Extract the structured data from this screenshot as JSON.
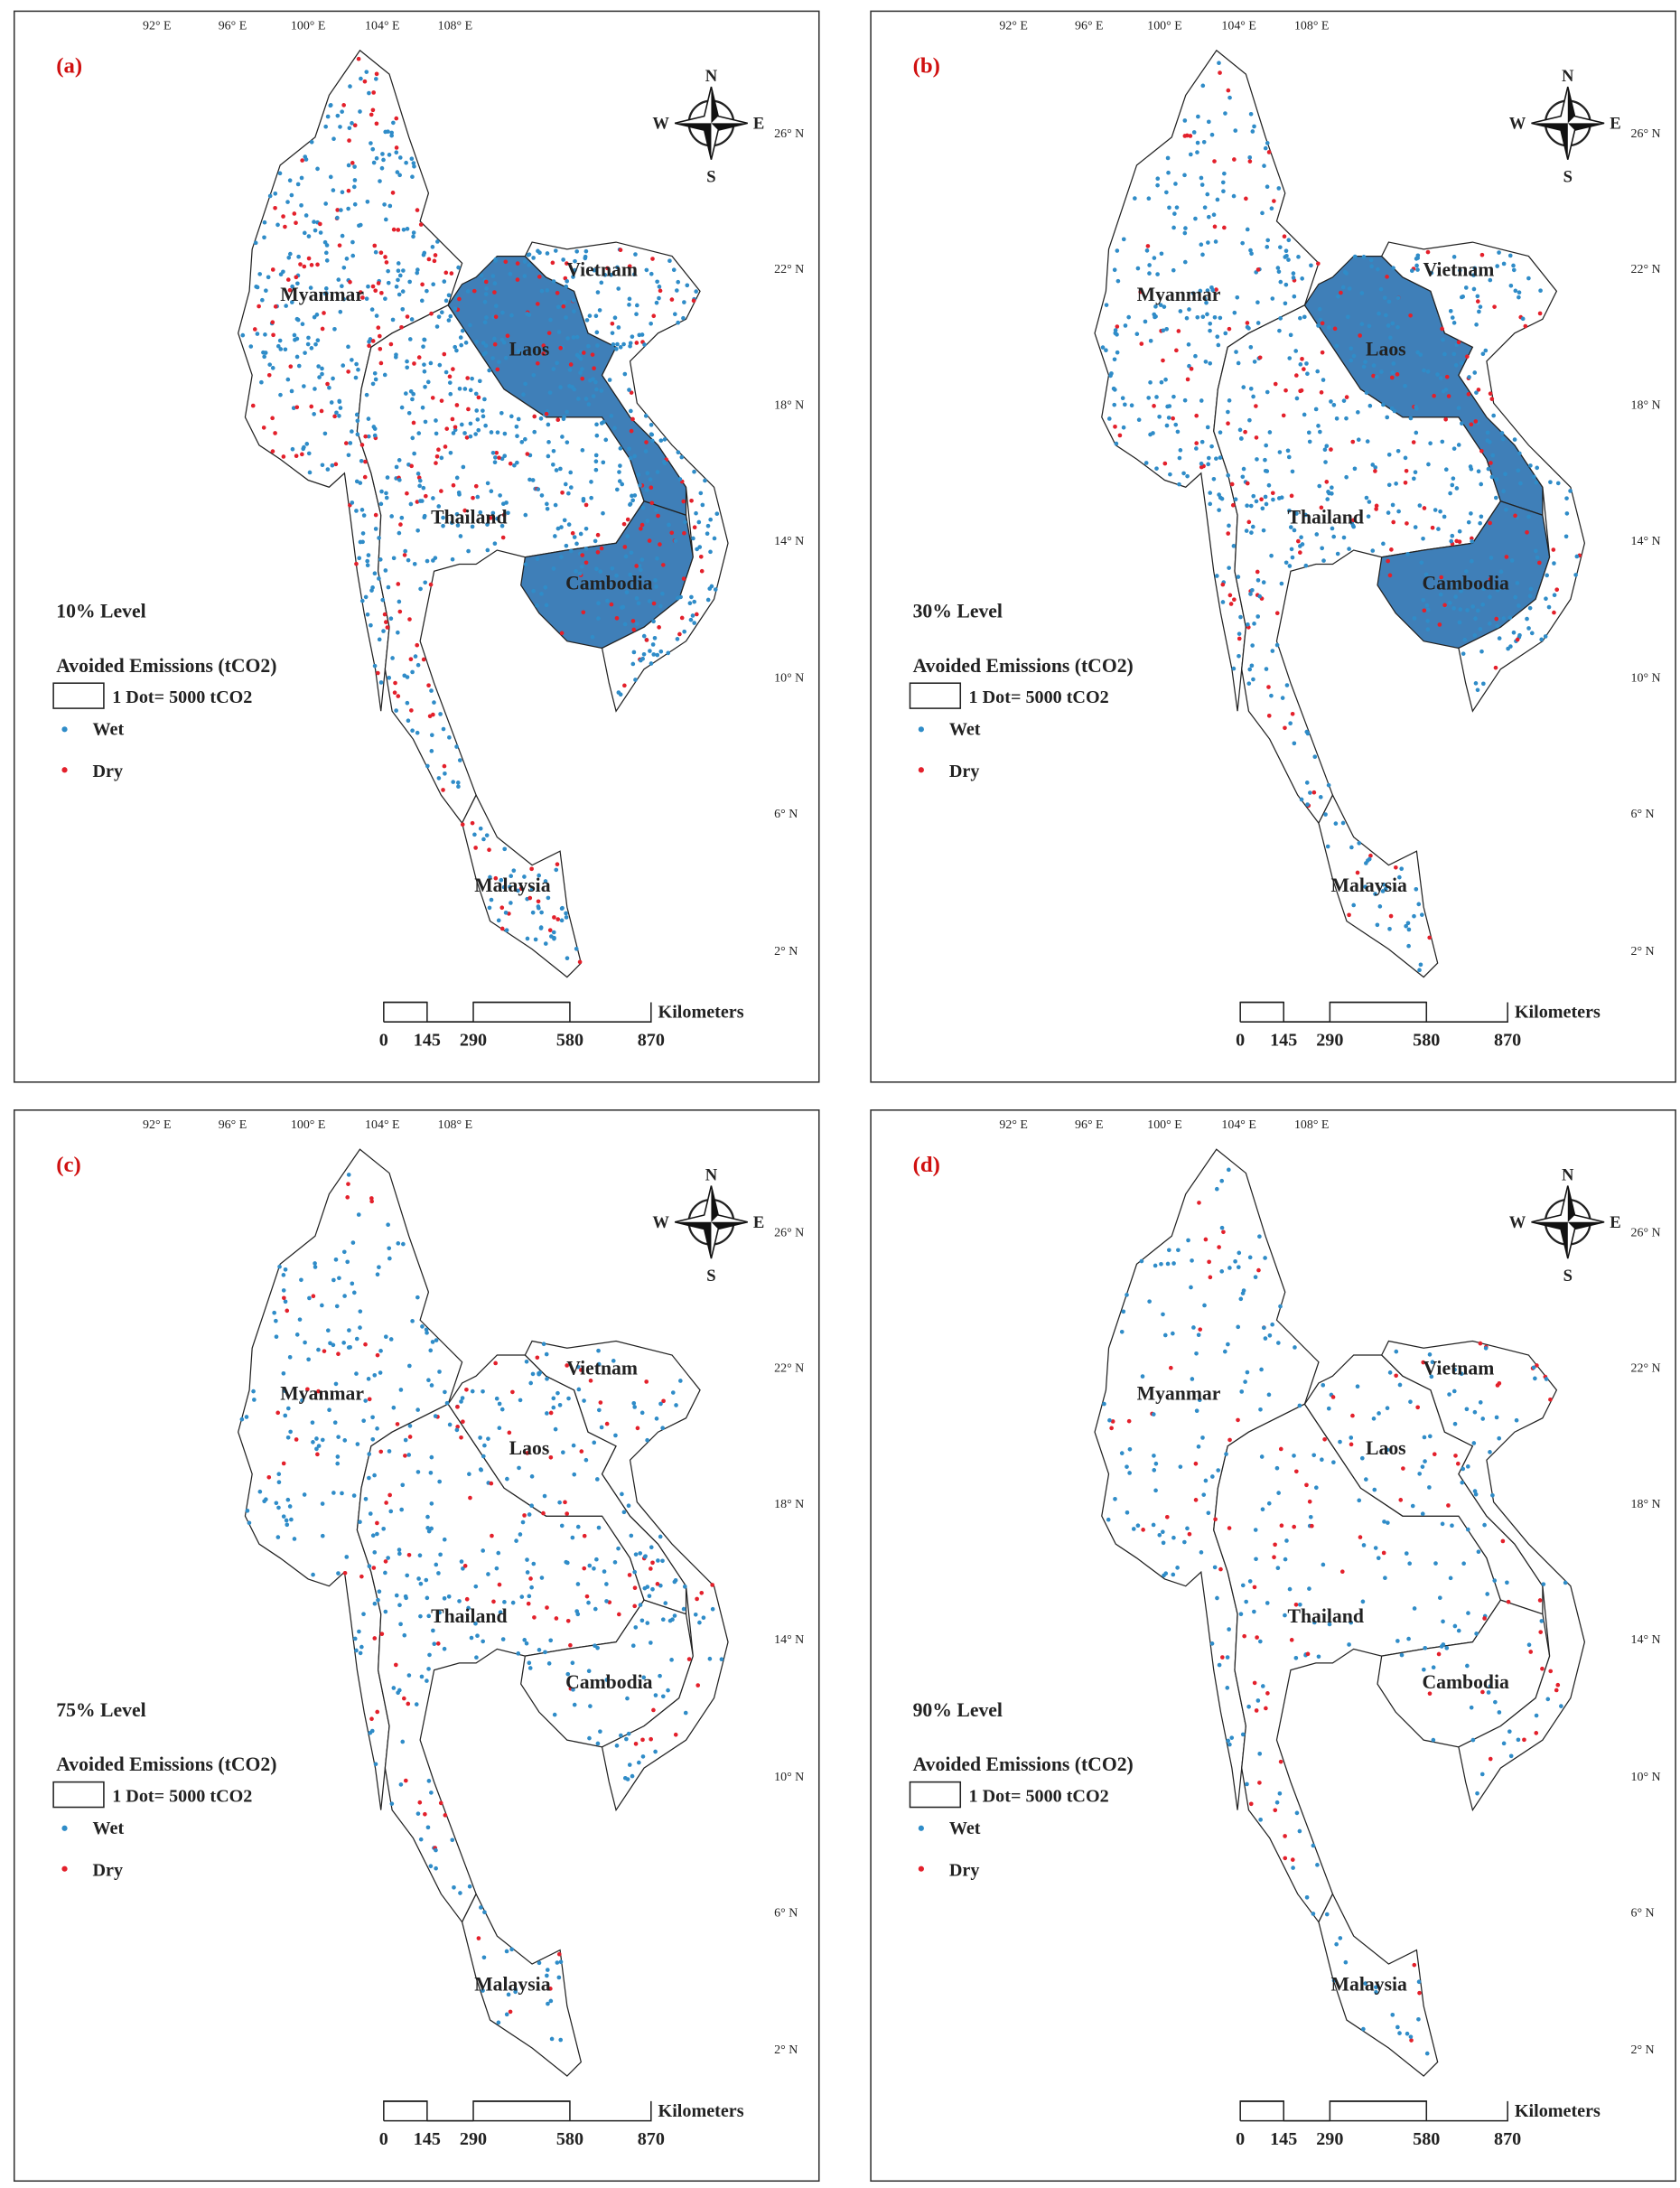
{
  "panels": [
    {
      "label": "(a)",
      "level": "10% Level"
    },
    {
      "label": "(b)",
      "level": "30% Level"
    },
    {
      "label": "(c)",
      "level": "75% Level"
    },
    {
      "label": "(d)",
      "level": "90% Level"
    }
  ],
  "map": {
    "longitudes": [
      "92° E",
      "96° E",
      "100° E",
      "104° E",
      "108° E"
    ],
    "latitudes": [
      "26° N",
      "22° N",
      "18° N",
      "14° N",
      "10° N",
      "6° N",
      "2° N"
    ],
    "countries": [
      "Myanmar",
      "Vietnam",
      "Laos",
      "Thailand",
      "Cambodia",
      "Malaysia"
    ],
    "compass": {
      "n": "N",
      "e": "E",
      "s": "S",
      "w": "W"
    },
    "legend": {
      "title": "Avoided Emissions (tCO2)",
      "dot": "1 Dot= 5000 tCO2",
      "wet": "Wet",
      "dry": "Dry"
    },
    "scale": {
      "ticks": [
        0,
        145,
        290,
        580,
        870
      ],
      "unit": "Kilometers"
    }
  }
}
